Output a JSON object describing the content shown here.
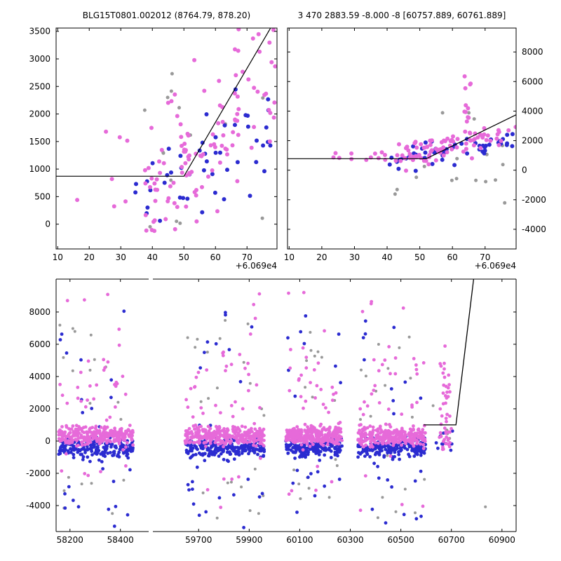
{
  "chart_data": [
    {
      "id": "panel-a",
      "type": "scatter",
      "title": "BLG15T0801.002012 (8764.79, 878.20)",
      "x_offset_label": "+6.069e4",
      "xlim": [
        9.5,
        79.5
      ],
      "ylim": [
        -450,
        3560
      ],
      "x_tick_values": [
        10,
        20,
        30,
        40,
        50,
        60,
        70
      ],
      "x_tick_labels": [
        "10",
        "20",
        "30",
        "40",
        "50",
        "60",
        "70"
      ],
      "y_tick_values": [
        0,
        500,
        1000,
        1500,
        2000,
        2500,
        3000,
        3500
      ],
      "y_tick_labels": [
        "0",
        "500",
        "1000",
        "1500",
        "2000",
        "2500",
        "3000",
        "3500"
      ],
      "y_label_side": "left",
      "series": [
        {
          "name": "gray",
          "color": "#999999",
          "marker_r": 2.5,
          "clusters": [
            {
              "kind": "uniform",
              "n": 15,
              "x": [
                35,
                77
              ],
              "y": [
                -130,
                2750
              ]
            }
          ]
        },
        {
          "name": "blue",
          "color": "#2B2BD0",
          "marker_r": 3,
          "clusters": [
            {
              "kind": "uniform",
              "n": 4,
              "x": [
                27,
                40
              ],
              "y": [
                50,
                1100
              ]
            },
            {
              "kind": "trend",
              "n": 45,
              "x": [
                38,
                79
              ],
              "path": [
                [
                  38,
                  550
                ],
                [
                  79,
                  1750
                ]
              ],
              "noise": 460,
              "clip": [
                -130,
                2700
              ]
            }
          ]
        },
        {
          "name": "violet",
          "color": "#E66AD9",
          "marker_r": 3,
          "clusters": [
            {
              "kind": "uniform",
              "n": 7,
              "x": [
                15,
                37
              ],
              "y": [
                -80,
                2250
              ]
            },
            {
              "kind": "trend",
              "n": 118,
              "x": [
                37,
                79.5
              ],
              "path": [
                [
                  37,
                  520
                ],
                [
                  57,
                  1250
                ],
                [
                  79.5,
                  2900
                ]
              ],
              "noise": 680,
              "clip": [
                -150,
                3560
              ]
            }
          ]
        }
      ],
      "line": {
        "color": "#000000",
        "width": 1.2,
        "path": [
          [
            9.5,
            870
          ],
          [
            50,
            870
          ],
          [
            79.5,
            3760
          ]
        ]
      }
    },
    {
      "id": "panel-b",
      "type": "scatter",
      "title": "3 470 2883.59 -8.000 -8 [60757.889, 60761.889]",
      "x_offset_label": "+6.069e4",
      "xlim": [
        9.5,
        79.5
      ],
      "ylim": [
        -5330,
        9620
      ],
      "x_tick_values": [
        10,
        20,
        30,
        40,
        50,
        60,
        70
      ],
      "x_tick_labels": [
        "10",
        "20",
        "30",
        "40",
        "50",
        "60",
        "70"
      ],
      "y_tick_values": [
        -4000,
        -2000,
        0,
        2000,
        4000,
        6000,
        8000
      ],
      "y_tick_labels": [
        "-4000",
        "-2000",
        "0",
        "2000",
        "4000",
        "6000",
        "8000"
      ],
      "y_label_side": "right",
      "series": [
        {
          "name": "gray",
          "color": "#999999",
          "marker_r": 2.5,
          "clusters": [
            {
              "kind": "uniform",
              "n": 15,
              "x": [
                42,
                78
              ],
              "y": [
                -2650,
                1900
              ]
            },
            {
              "kind": "uniform",
              "n": 3,
              "x": [
                56,
                68
              ],
              "y": [
                2400,
                4700
              ]
            }
          ]
        },
        {
          "name": "blue",
          "color": "#2B2BD0",
          "marker_r": 3,
          "clusters": [
            {
              "kind": "trend",
              "n": 55,
              "x": [
                40,
                79
              ],
              "path": [
                [
                  40,
                  650
                ],
                [
                  79,
                  2150
                ]
              ],
              "noise": 390,
              "clip": [
                -600,
                3200
              ]
            }
          ]
        },
        {
          "name": "violet",
          "color": "#E66AD9",
          "marker_r": 3,
          "clusters": [
            {
              "kind": "gauss",
              "n": 12,
              "x": [
                18,
                42
              ],
              "yc": 900,
              "ys": 240
            },
            {
              "kind": "trend",
              "n": 92,
              "x": [
                42,
                79.5
              ],
              "path": [
                [
                  42,
                  800
                ],
                [
                  79.5,
                  2800
                ]
              ],
              "noise": 450,
              "clip": [
                -300,
                4300
              ]
            },
            {
              "kind": "uniform",
              "n": 13,
              "x": [
                63.5,
                66
              ],
              "y": [
                2200,
                6600
              ]
            }
          ]
        }
      ],
      "line": {
        "color": "#000000",
        "width": 1.2,
        "path": [
          [
            9.5,
            780
          ],
          [
            52,
            780
          ],
          [
            79.5,
            3750
          ]
        ]
      }
    },
    {
      "id": "panel-c",
      "type": "scatter",
      "title": "",
      "xlim": [
        58145,
        60956
      ],
      "x_segments": [
        {
          "xlim": [
            58145,
            58512
          ],
          "frac": [
            0,
            0.2012
          ]
        },
        {
          "xlim": [
            59519,
            60956
          ],
          "frac": [
            0.2104,
            1
          ]
        }
      ],
      "ylim": [
        -5610,
        10040
      ],
      "x_tick_values": [
        58200,
        58400,
        59700,
        59900,
        60100,
        60300,
        60500,
        60700,
        60900
      ],
      "x_tick_labels": [
        "58200",
        "58400",
        "59700",
        "59900",
        "60100",
        "60300",
        "60500",
        "60700",
        "60900"
      ],
      "y_tick_values": [
        -4000,
        -2000,
        0,
        2000,
        4000,
        6000,
        8000
      ],
      "y_tick_labels": [
        "-4000",
        "-2000",
        "0",
        "2000",
        "4000",
        "6000",
        "8000"
      ],
      "y_label_side": "left",
      "series": [
        {
          "name": "gray",
          "color": "#999999",
          "marker_r": 2,
          "clusters": [
            {
              "kind": "uniform",
              "n": 20,
              "x": [
                58155,
                58450
              ],
              "y": [
                -4900,
                7600
              ]
            },
            {
              "kind": "uniform",
              "n": 24,
              "x": [
                59645,
                59960
              ],
              "y": [
                -4900,
                7600
              ]
            },
            {
              "kind": "uniform",
              "n": 19,
              "x": [
                60045,
                60270
              ],
              "y": [
                -4700,
                7200
              ]
            },
            {
              "kind": "uniform",
              "n": 21,
              "x": [
                60330,
                60600
              ],
              "y": [
                -4900,
                7400
              ]
            },
            {
              "kind": "uniform",
              "n": 5,
              "x": [
                60620,
                60740
              ],
              "y": [
                -2500,
                2200
              ]
            },
            {
              "kind": "uniform",
              "n": 1,
              "x": [
                60810,
                60835
              ],
              "y": [
                -4100,
                -3850
              ]
            }
          ]
        },
        {
          "name": "blue",
          "color": "#2B2BD0",
          "marker_r": 2.4,
          "clusters": [
            {
              "kind": "gauss",
              "n": 190,
              "x": [
                58155,
                58450
              ],
              "yc": -420,
              "ys": 300
            },
            {
              "kind": "uniform",
              "n": 10,
              "x": [
                58160,
                58440
              ],
              "y": [
                900,
                8300
              ]
            },
            {
              "kind": "uniform",
              "n": 12,
              "x": [
                58160,
                58440
              ],
              "y": [
                -5300,
                -1000
              ]
            },
            {
              "kind": "gauss",
              "n": 215,
              "x": [
                59645,
                59960
              ],
              "yc": -420,
              "ys": 300
            },
            {
              "kind": "uniform",
              "n": 11,
              "x": [
                59650,
                59955
              ],
              "y": [
                900,
                8600
              ]
            },
            {
              "kind": "uniform",
              "n": 13,
              "x": [
                59650,
                59955
              ],
              "y": [
                -5400,
                -1000
              ]
            },
            {
              "kind": "gauss",
              "n": 175,
              "x": [
                60045,
                60270
              ],
              "yc": -420,
              "ys": 300
            },
            {
              "kind": "uniform",
              "n": 9,
              "x": [
                60050,
                60265
              ],
              "y": [
                900,
                8000
              ]
            },
            {
              "kind": "uniform",
              "n": 10,
              "x": [
                60050,
                60265
              ],
              "y": [
                -5200,
                -1000
              ]
            },
            {
              "kind": "gauss",
              "n": 190,
              "x": [
                60330,
                60600
              ],
              "yc": -420,
              "ys": 300
            },
            {
              "kind": "uniform",
              "n": 10,
              "x": [
                60335,
                60595
              ],
              "y": [
                900,
                7600
              ]
            },
            {
              "kind": "uniform",
              "n": 11,
              "x": [
                60335,
                60595
              ],
              "y": [
                -5300,
                -1000
              ]
            },
            {
              "kind": "gauss",
              "n": 10,
              "x": [
                60640,
                60710
              ],
              "yc": -150,
              "ys": 500
            }
          ]
        },
        {
          "name": "violet",
          "color": "#E66AD9",
          "marker_r": 2.4,
          "clusters": [
            {
              "kind": "gauss",
              "n": 275,
              "x": [
                58155,
                58450
              ],
              "yc": 300,
              "ys": 280
            },
            {
              "kind": "uniform",
              "n": 27,
              "x": [
                58160,
                58440
              ],
              "y": [
                900,
                5200
              ]
            },
            {
              "kind": "uniform",
              "n": 5,
              "x": [
                58170,
                58430
              ],
              "y": [
                5200,
                9500
              ]
            },
            {
              "kind": "uniform",
              "n": 5,
              "x": [
                58160,
                58440
              ],
              "y": [
                -3800,
                -900
              ]
            },
            {
              "kind": "gauss",
              "n": 305,
              "x": [
                59645,
                59960
              ],
              "yc": 300,
              "ys": 280
            },
            {
              "kind": "uniform",
              "n": 31,
              "x": [
                59650,
                59955
              ],
              "y": [
                900,
                5400
              ]
            },
            {
              "kind": "uniform",
              "n": 6,
              "x": [
                59660,
                59950
              ],
              "y": [
                5400,
                9600
              ]
            },
            {
              "kind": "uniform",
              "n": 6,
              "x": [
                59650,
                59955
              ],
              "y": [
                -4200,
                -900
              ]
            },
            {
              "kind": "gauss",
              "n": 260,
              "x": [
                60045,
                60270
              ],
              "yc": 300,
              "ys": 280
            },
            {
              "kind": "uniform",
              "n": 25,
              "x": [
                60050,
                60265
              ],
              "y": [
                900,
                5200
              ]
            },
            {
              "kind": "uniform",
              "n": 5,
              "x": [
                60055,
                60260
              ],
              "y": [
                5200,
                9300
              ]
            },
            {
              "kind": "uniform",
              "n": 5,
              "x": [
                60050,
                60265
              ],
              "y": [
                -3600,
                -900
              ]
            },
            {
              "kind": "gauss",
              "n": 275,
              "x": [
                60330,
                60600
              ],
              "yc": 300,
              "ys": 280
            },
            {
              "kind": "uniform",
              "n": 27,
              "x": [
                60335,
                60595
              ],
              "y": [
                900,
                5200
              ]
            },
            {
              "kind": "uniform",
              "n": 5,
              "x": [
                60340,
                60590
              ],
              "y": [
                5200,
                9000
              ]
            },
            {
              "kind": "uniform",
              "n": 5,
              "x": [
                60335,
                60595
              ],
              "y": [
                -4400,
                -900
              ]
            },
            {
              "kind": "uniform",
              "n": 36,
              "x": [
                60655,
                60695
              ],
              "y": [
                -900,
                6300
              ]
            },
            {
              "kind": "gauss",
              "n": 14,
              "x": [
                60650,
                60700
              ],
              "yc": 250,
              "ys": 380
            }
          ]
        }
      ],
      "line": {
        "color": "#000000",
        "width": 1.3,
        "path": [
          [
            60590,
            1000
          ],
          [
            60718,
            1000
          ],
          [
            60788,
            10040
          ]
        ]
      }
    }
  ]
}
